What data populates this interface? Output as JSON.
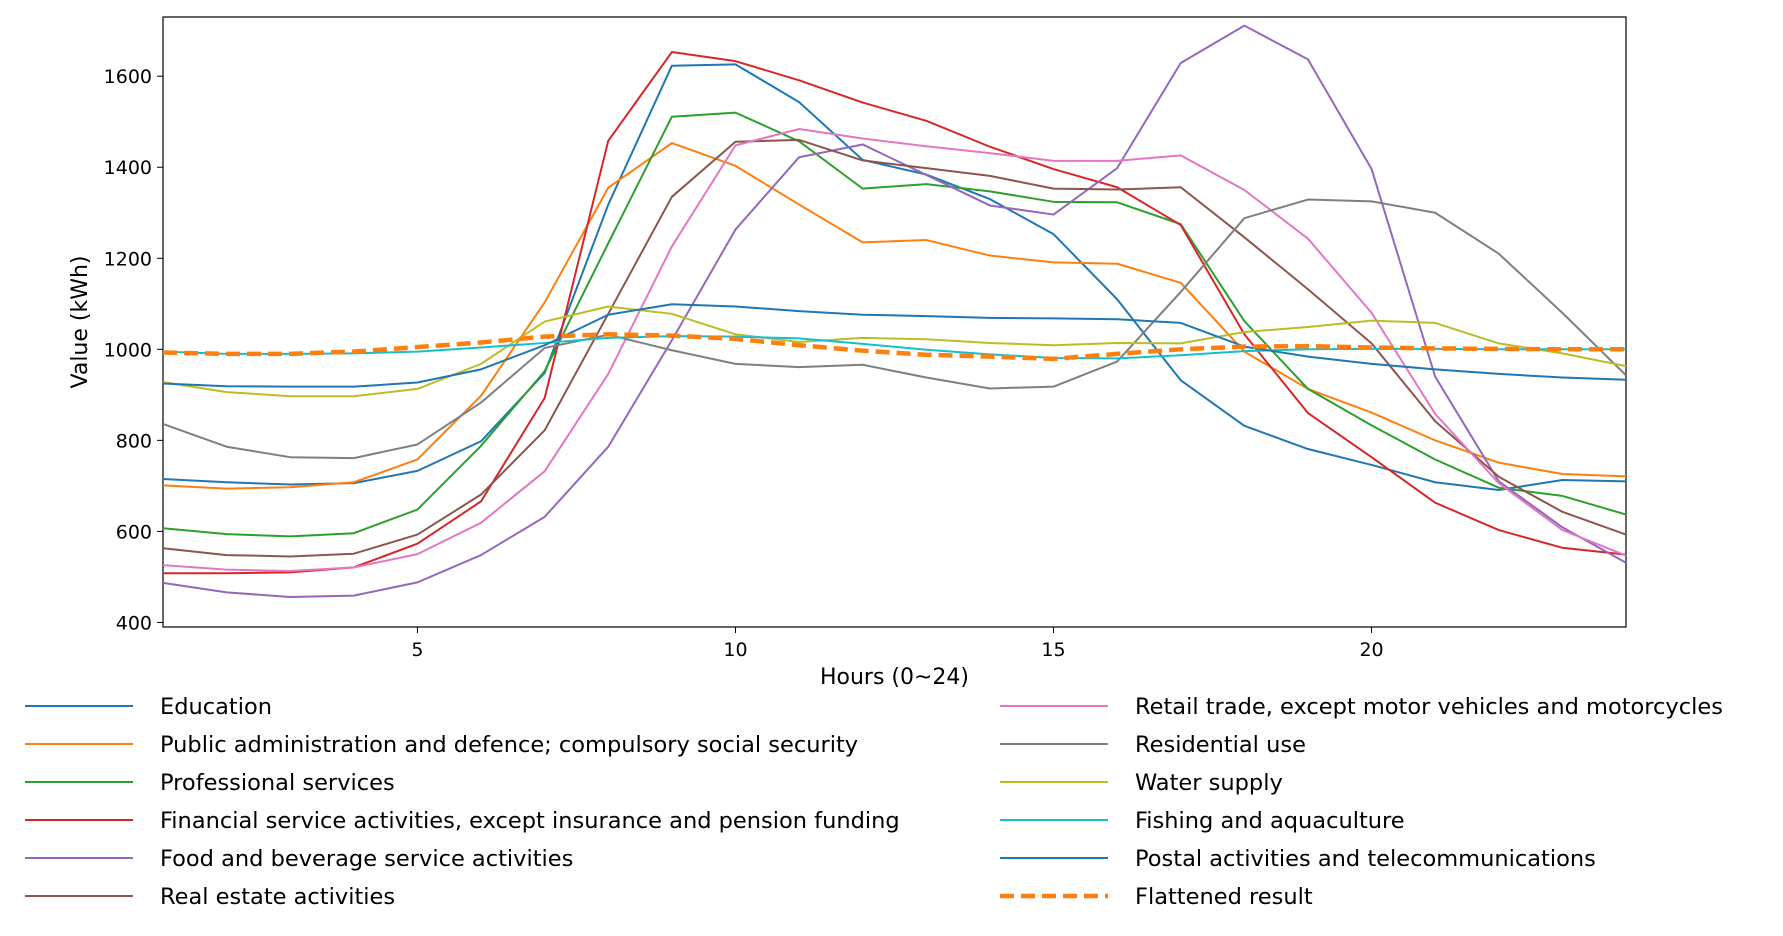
{
  "chart_data": {
    "type": "line",
    "xlabel": "Hours (0~24)",
    "ylabel": "Value (kWh)",
    "xlim": [
      1,
      24
    ],
    "ylim": [
      390,
      1730
    ],
    "xticks": [
      5,
      10,
      15,
      20
    ],
    "yticks": [
      400,
      600,
      800,
      1000,
      1200,
      1400,
      1600
    ],
    "grid": false,
    "legend_location": "bottom, two columns",
    "x": [
      1,
      2,
      3,
      4,
      5,
      6,
      7,
      8,
      9,
      10,
      11,
      12,
      13,
      14,
      15,
      16,
      17,
      18,
      19,
      20,
      21,
      22,
      23,
      24
    ],
    "series": [
      {
        "name": "Education",
        "color": "#1f77b4",
        "dashed": false,
        "values": [
          715,
          708,
          703,
          706,
          733,
          798,
          948,
          1318,
          1623,
          1626,
          1543,
          1416,
          1384,
          1330,
          1253,
          1110,
          932,
          832,
          781,
          746,
          708,
          691,
          713,
          710
        ]
      },
      {
        "name": "Public administration and defence; compulsory social security",
        "color": "#ff7f0e",
        "dashed": false,
        "values": [
          701,
          694,
          697,
          708,
          758,
          898,
          1103,
          1355,
          1453,
          1403,
          1318,
          1235,
          1240,
          1206,
          1191,
          1188,
          1146,
          995,
          913,
          861,
          800,
          751,
          726,
          721
        ]
      },
      {
        "name": "Professional services",
        "color": "#2ca02c",
        "dashed": false,
        "values": [
          607,
          594,
          589,
          596,
          648,
          788,
          952,
          1233,
          1511,
          1520,
          1457,
          1353,
          1363,
          1347,
          1324,
          1323,
          1275,
          1062,
          913,
          833,
          758,
          696,
          678,
          637
        ]
      },
      {
        "name": "Financial service activities, except insurance and pension funding",
        "color": "#d62728",
        "dashed": false,
        "values": [
          508,
          508,
          510,
          521,
          573,
          666,
          893,
          1458,
          1653,
          1633,
          1591,
          1542,
          1502,
          1445,
          1396,
          1356,
          1273,
          1033,
          860,
          763,
          663,
          603,
          564,
          549
        ]
      },
      {
        "name": "Food and beverage service activities",
        "color": "#9467bd",
        "dashed": false,
        "values": [
          487,
          466,
          456,
          459,
          488,
          548,
          632,
          786,
          1020,
          1263,
          1422,
          1450,
          1383,
          1316,
          1296,
          1398,
          1629,
          1711,
          1637,
          1396,
          940,
          710,
          609,
          531
        ]
      },
      {
        "name": "Real estate activities",
        "color": "#8c564b",
        "dashed": false,
        "values": [
          563,
          548,
          545,
          551,
          593,
          681,
          822,
          1078,
          1335,
          1456,
          1460,
          1415,
          1398,
          1381,
          1353,
          1351,
          1356,
          1246,
          1132,
          1013,
          842,
          720,
          643,
          593
        ]
      },
      {
        "name": "Retail trade, except motor vehicles and motorcycles",
        "color": "#e377c2",
        "dashed": false,
        "values": [
          526,
          516,
          513,
          521,
          550,
          619,
          732,
          946,
          1226,
          1448,
          1484,
          1463,
          1446,
          1431,
          1414,
          1414,
          1426,
          1350,
          1243,
          1080,
          858,
          706,
          603,
          547
        ]
      },
      {
        "name": "Residential use",
        "color": "#7f7f7f",
        "dashed": false,
        "values": [
          836,
          786,
          763,
          761,
          791,
          883,
          1003,
          1032,
          998,
          968,
          961,
          966,
          938,
          914,
          918,
          973,
          1126,
          1288,
          1329,
          1325,
          1300,
          1210,
          1080,
          943
        ]
      },
      {
        "name": "Water supply",
        "color": "#bcbd22",
        "dashed": false,
        "values": [
          928,
          906,
          897,
          897,
          913,
          968,
          1061,
          1094,
          1078,
          1033,
          1016,
          1025,
          1022,
          1014,
          1009,
          1014,
          1013,
          1038,
          1049,
          1063,
          1058,
          1013,
          991,
          963
        ]
      },
      {
        "name": "Fishing and aquaculture",
        "color": "#17becf",
        "dashed": false,
        "values": [
          995,
          990,
          990,
          991,
          995,
          1004,
          1014,
          1025,
          1029,
          1028,
          1024,
          1012,
          999,
          989,
          981,
          980,
          987,
          996,
          1000,
          1001,
          1001,
          1000,
          1000,
          1000
        ]
      },
      {
        "name": "Postal activities and telecommunications",
        "color": "#1f77b4",
        "dashed": false,
        "values": [
          925,
          919,
          918,
          918,
          927,
          956,
          1009,
          1076,
          1099,
          1094,
          1084,
          1076,
          1073,
          1069,
          1068,
          1066,
          1058,
          1006,
          984,
          968,
          956,
          946,
          938,
          933
        ]
      },
      {
        "name": "Flattened result",
        "color": "#ff7f0e",
        "dashed": true,
        "values": [
          993,
          990,
          990,
          995,
          1005,
          1015,
          1028,
          1033,
          1030,
          1023,
          1009,
          997,
          988,
          984,
          979,
          990,
          1000,
          1006,
          1007,
          1004,
          1002,
          1001,
          1000,
          1000
        ]
      }
    ]
  }
}
